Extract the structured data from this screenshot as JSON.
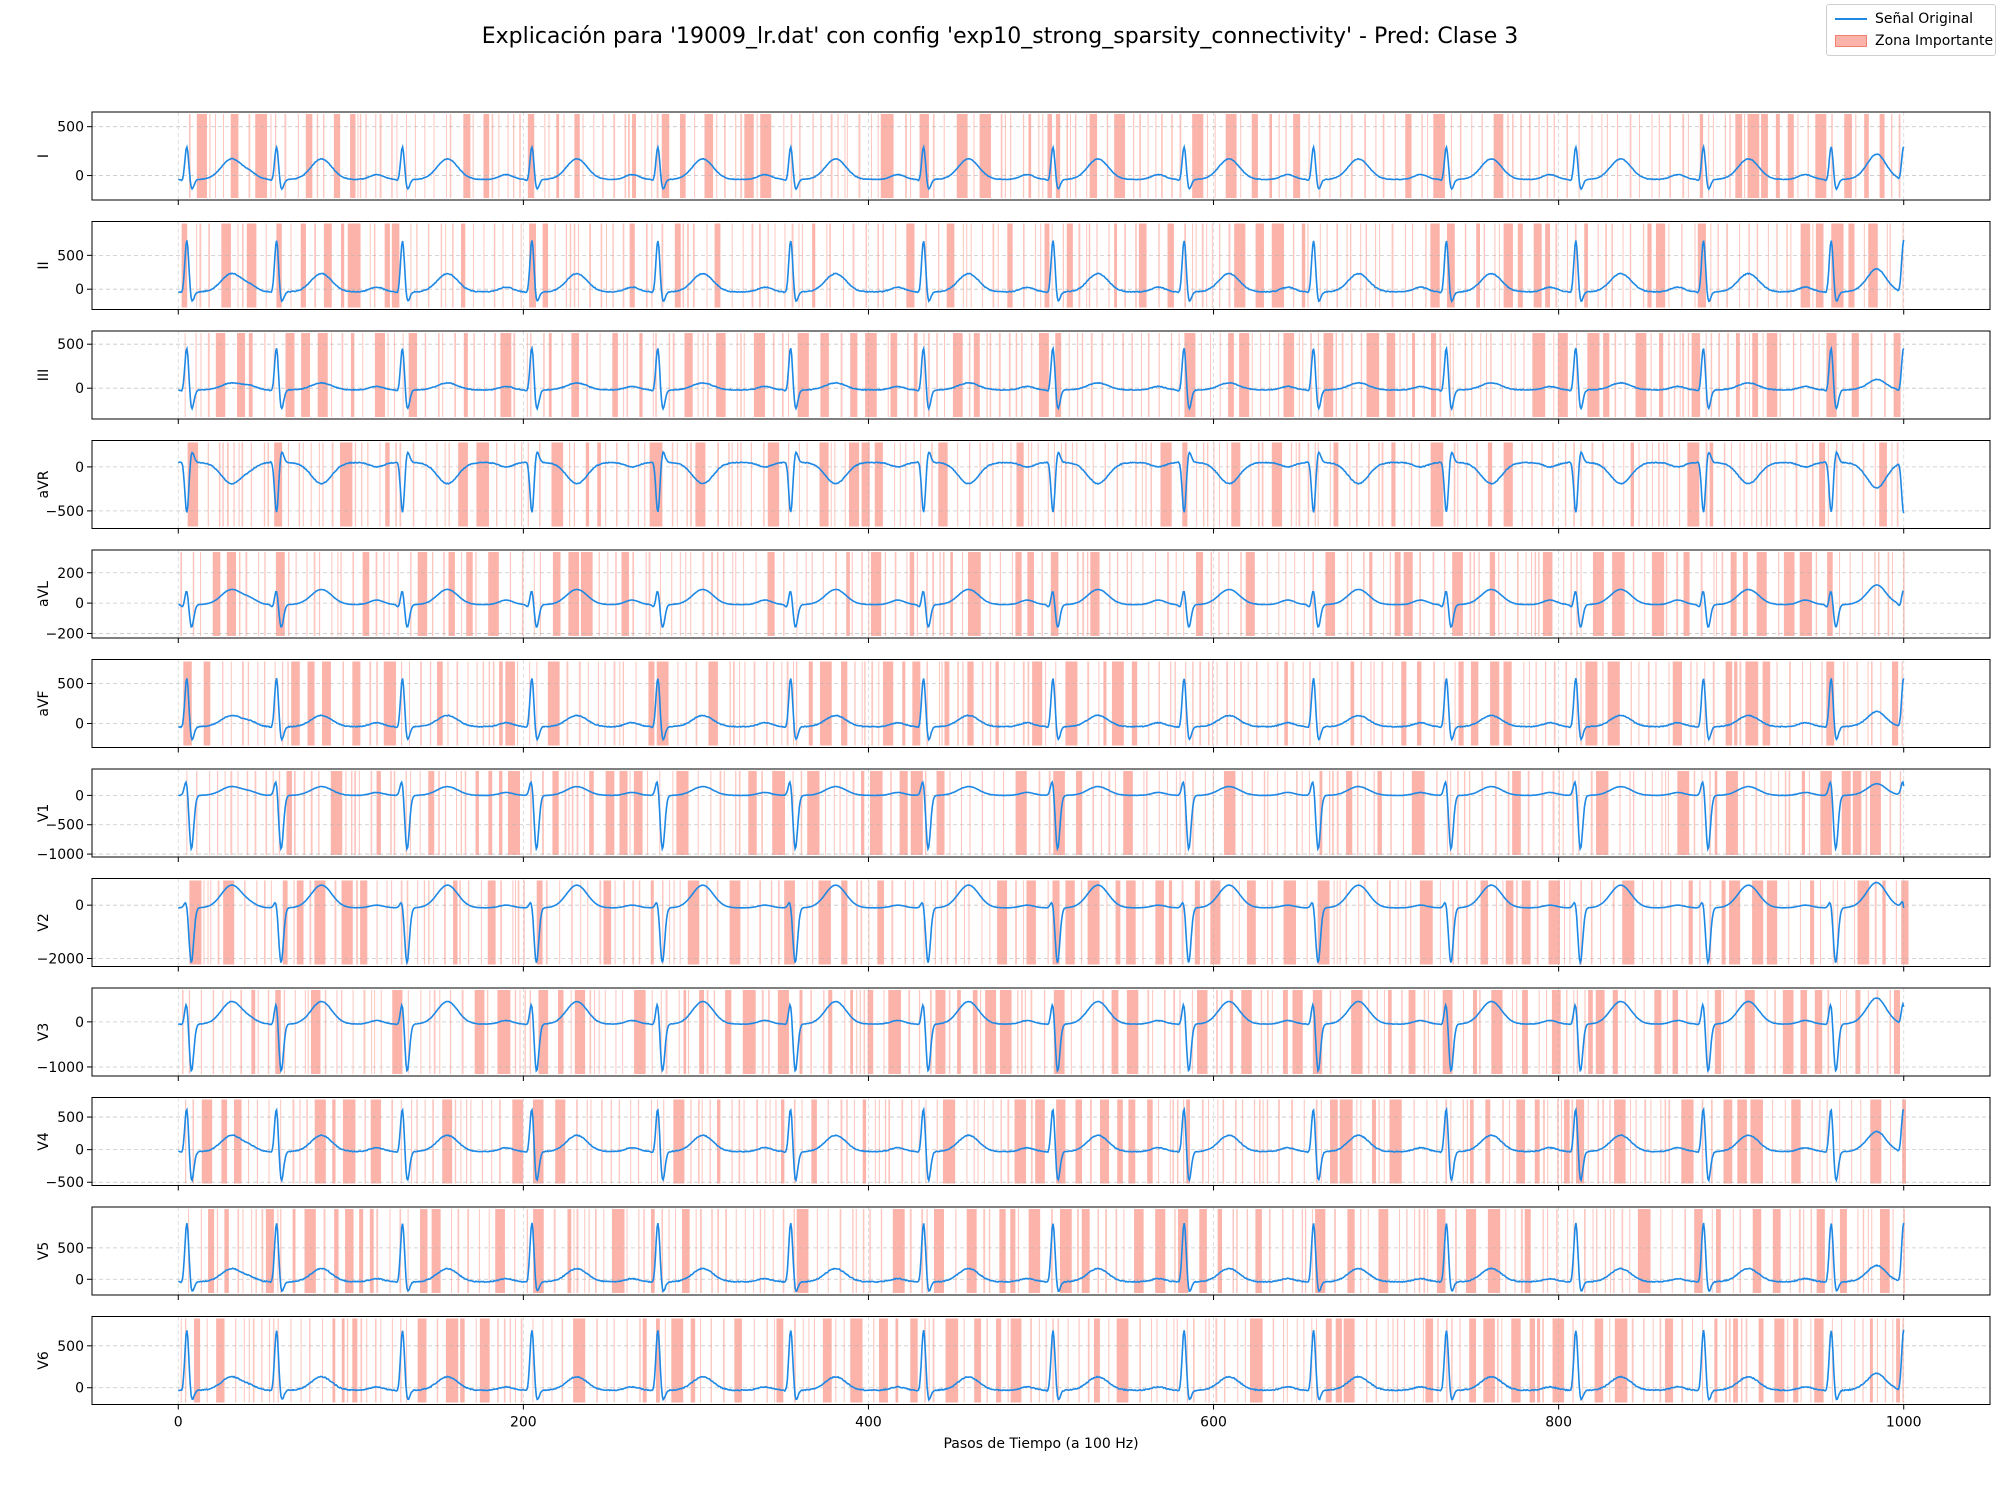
{
  "figure": {
    "title": "Explicación para '19009_lr.dat' con config 'exp10_strong_sparsity_connectivity' - Pred: Clase 3",
    "legend": [
      {
        "label": "Señal Original",
        "color": "#1e88e5",
        "kind": "line"
      },
      {
        "label": "Zona Importante",
        "color": "#fa8072",
        "kind": "patch"
      }
    ],
    "colors": {
      "signal": "#1e88e5",
      "highlight": "#fa8072",
      "grid": "#b0b0b0"
    }
  },
  "chart_data": {
    "type": "line",
    "title": "Explicación para '19009_lr.dat' con config 'exp10_strong_sparsity_connectivity' - Pred: Clase 3",
    "xlabel": "Pasos de Tiempo (a 100 Hz)",
    "xlim": [
      -50,
      1050
    ],
    "xticks": [
      0,
      200,
      400,
      600,
      800,
      1000
    ],
    "grid": true,
    "legend_position": "top-right",
    "beats": [
      5,
      57,
      130,
      205,
      278,
      355,
      432,
      507,
      583,
      658,
      735,
      810,
      884,
      958,
      1000
    ],
    "series": [
      {
        "name": "I",
        "ylabel": "I",
        "ylim": [
          -250,
          650
        ],
        "yticks": [
          0,
          500
        ],
        "r": 360,
        "q": -40,
        "s": -120,
        "t": 170,
        "p": 50,
        "base": -40
      },
      {
        "name": "II",
        "ylabel": "II",
        "ylim": [
          -300,
          1000
        ],
        "yticks": [
          0,
          500
        ],
        "r": 800,
        "q": -60,
        "s": -180,
        "t": 230,
        "p": 70,
        "base": -40
      },
      {
        "name": "III",
        "ylabel": "III",
        "ylim": [
          -350,
          650
        ],
        "yticks": [
          0,
          500
        ],
        "r": 530,
        "q": -50,
        "s": -250,
        "t": 60,
        "p": 40,
        "base": -20
      },
      {
        "name": "aVR",
        "ylabel": "aVR",
        "ylim": [
          -700,
          300
        ],
        "yticks": [
          -500,
          0
        ],
        "r": -600,
        "q": 40,
        "s": 150,
        "t": -190,
        "p": -50,
        "base": 50
      },
      {
        "name": "aVL",
        "ylabel": "aVL",
        "ylim": [
          -230,
          350
        ],
        "yticks": [
          -200,
          0,
          200
        ],
        "r": 120,
        "q": -30,
        "s": -160,
        "t": 90,
        "p": 30,
        "base": -10
      },
      {
        "name": "aVF",
        "ylabel": "aVF",
        "ylim": [
          -300,
          800
        ],
        "yticks": [
          0,
          500
        ],
        "r": 650,
        "q": -50,
        "s": -200,
        "t": 100,
        "p": 50,
        "base": -40
      },
      {
        "name": "V1",
        "ylabel": "V1",
        "ylim": [
          -1050,
          450
        ],
        "yticks": [
          -1000,
          -500,
          0
        ],
        "r": 350,
        "q": 0,
        "s": -950,
        "t": 150,
        "p": 50,
        "base": 0
      },
      {
        "name": "V2",
        "ylabel": "V2",
        "ylim": [
          -2300,
          1000
        ],
        "yticks": [
          -2000,
          0
        ],
        "r": 400,
        "q": 0,
        "s": -2100,
        "t": 750,
        "p": 100,
        "base": -100
      },
      {
        "name": "V3",
        "ylabel": "V3",
        "ylim": [
          -1200,
          750
        ],
        "yticks": [
          -1000,
          0
        ],
        "r": 600,
        "q": -50,
        "s": -1100,
        "t": 450,
        "p": 80,
        "base": -50
      },
      {
        "name": "V4",
        "ylabel": "V4",
        "ylim": [
          -550,
          800
        ],
        "yticks": [
          -500,
          0,
          500
        ],
        "r": 750,
        "q": -60,
        "s": -500,
        "t": 220,
        "p": 60,
        "base": -30
      },
      {
        "name": "V5",
        "ylabel": "V5",
        "ylim": [
          -250,
          1150
        ],
        "yticks": [
          0,
          500
        ],
        "r": 980,
        "q": -60,
        "s": -200,
        "t": 170,
        "p": 50,
        "base": -40
      },
      {
        "name": "V6",
        "ylabel": "V6",
        "ylim": [
          -200,
          850
        ],
        "yticks": [
          0,
          500
        ],
        "r": 750,
        "q": -50,
        "s": -150,
        "t": 130,
        "p": 40,
        "base": -30
      }
    ]
  }
}
